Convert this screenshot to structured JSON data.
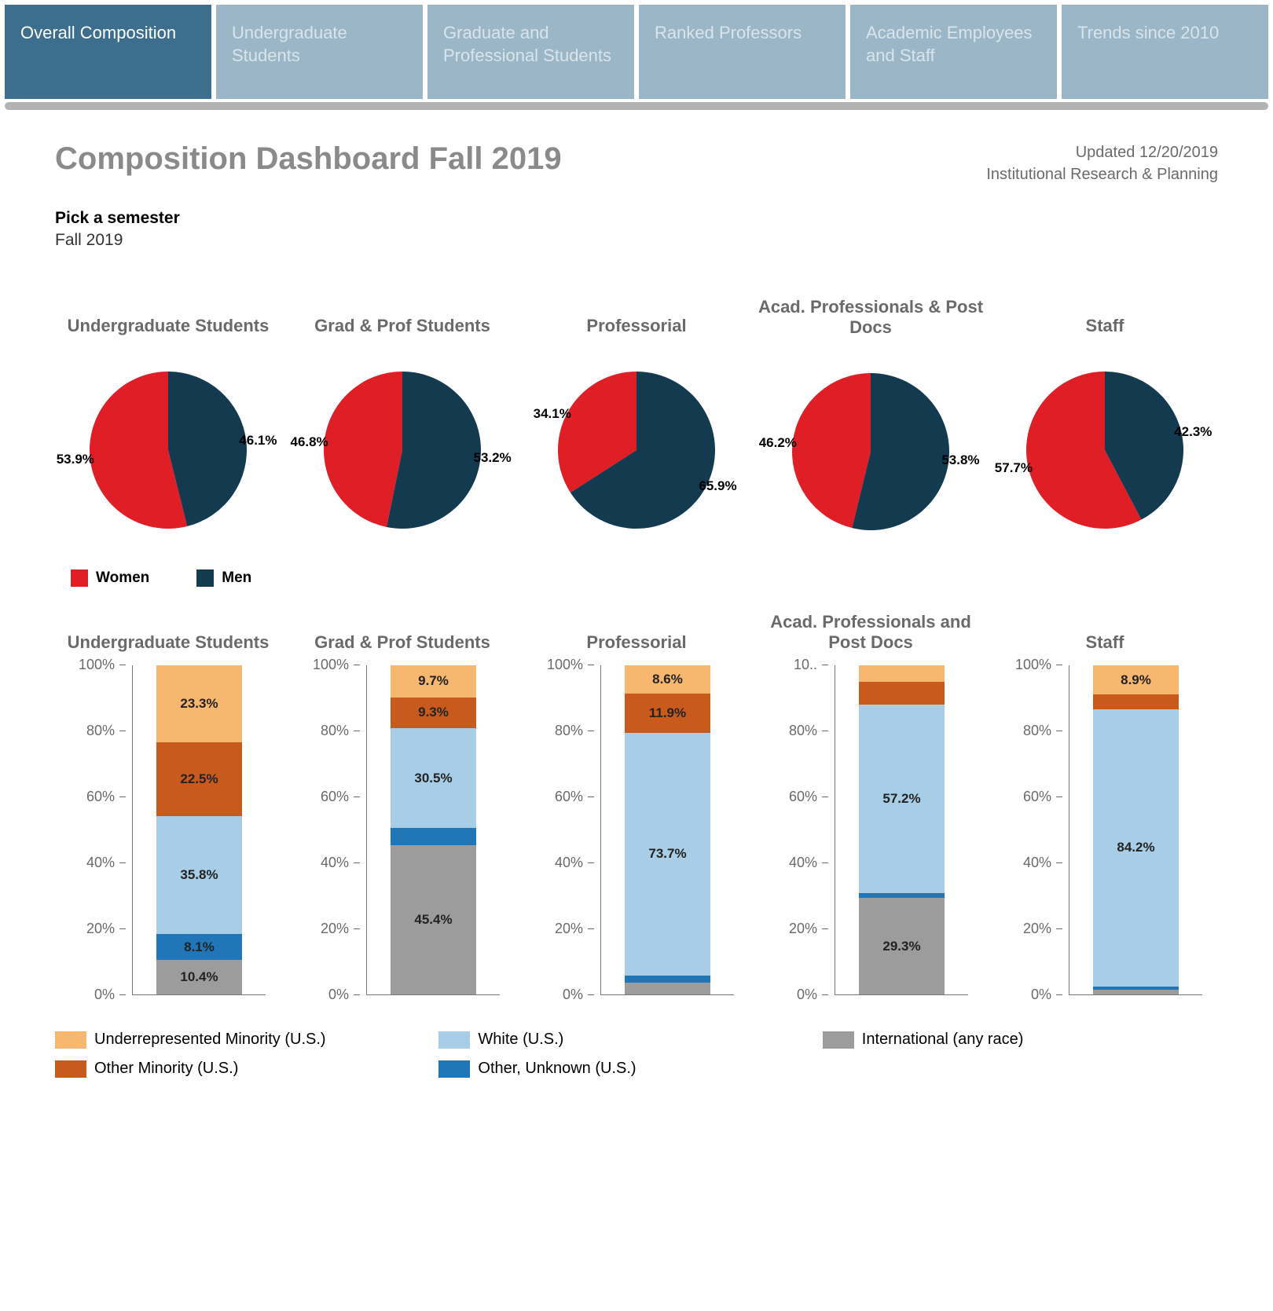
{
  "colors": {
    "tab_active": "#3d6e8e",
    "tab_inactive": "#9bb7c7",
    "tab_active_text": "#ffffff",
    "tab_inactive_text": "#d9e4eb",
    "title_text": "#8a8a8a",
    "women": "#df1e26",
    "men": "#143a50",
    "underrep": "#f7b76e",
    "other_minority": "#c85a1e",
    "white": "#a7cee6",
    "other_unknown": "#2176b8",
    "international": "#9c9c9c"
  },
  "tabs": [
    {
      "label": "Overall Composition",
      "active": true
    },
    {
      "label": "Undergraduate Students",
      "active": false
    },
    {
      "label": "Graduate and Professional Students",
      "active": false
    },
    {
      "label": "Ranked Professors",
      "active": false
    },
    {
      "label": "Academic Employees and Staff",
      "active": false
    },
    {
      "label": "Trends since 2010",
      "active": false
    }
  ],
  "header": {
    "title": "Composition Dashboard  Fall 2019",
    "updated": "Updated 12/20/2019",
    "org": "Institutional Research & Planning"
  },
  "picker": {
    "label": "Pick a semester",
    "value": "Fall 2019"
  },
  "gender_legend": {
    "women": "Women",
    "men": "Men"
  },
  "pies": [
    {
      "title": "Undergraduate Students",
      "women": 53.9,
      "men": 46.1,
      "women_label": "53.9%",
      "men_label": "46.1%"
    },
    {
      "title": "Grad & Prof Students",
      "women": 46.8,
      "men": 53.2,
      "women_label": "46.8%",
      "men_label": "53.2%"
    },
    {
      "title": "Professorial",
      "women": 34.1,
      "men": 65.9,
      "women_label": "34.1%",
      "men_label": "65.9%"
    },
    {
      "title": "Acad. Professionals & Post Docs",
      "women": 46.2,
      "men": 53.8,
      "women_label": "46.2%",
      "men_label": "53.8%"
    },
    {
      "title": "Staff",
      "women": 57.7,
      "men": 42.3,
      "women_label": "57.7%",
      "men_label": "42.3%"
    }
  ],
  "bars_meta": {
    "ylim": [
      0,
      100
    ],
    "ytick_step": 20,
    "ticks": [
      "0%",
      "20%",
      "40%",
      "60%",
      "80%",
      "100%"
    ]
  },
  "race_keys": [
    "international",
    "other_unknown",
    "white",
    "other_minority",
    "underrep"
  ],
  "bars": [
    {
      "title": "Undergraduate Students",
      "segments": {
        "international": {
          "value": 10.4,
          "label": "10.4%"
        },
        "other_unknown": {
          "value": 8.1,
          "label": "8.1%"
        },
        "white": {
          "value": 35.8,
          "label": "35.8%"
        },
        "other_minority": {
          "value": 22.5,
          "label": "22.5%"
        },
        "underrep": {
          "value": 23.3,
          "label": "23.3%"
        }
      },
      "ylabel_override": null
    },
    {
      "title": "Grad & Prof Students",
      "segments": {
        "international": {
          "value": 45.4,
          "label": "45.4%"
        },
        "other_unknown": {
          "value": 5.1,
          "label": ""
        },
        "white": {
          "value": 30.5,
          "label": "30.5%"
        },
        "other_minority": {
          "value": 9.3,
          "label": "9.3%"
        },
        "underrep": {
          "value": 9.7,
          "label": "9.7%"
        }
      },
      "ylabel_override": null
    },
    {
      "title": "Professorial",
      "segments": {
        "international": {
          "value": 3.5,
          "label": ""
        },
        "other_unknown": {
          "value": 2.3,
          "label": ""
        },
        "white": {
          "value": 73.7,
          "label": "73.7%"
        },
        "other_minority": {
          "value": 11.9,
          "label": "11.9%"
        },
        "underrep": {
          "value": 8.6,
          "label": "8.6%"
        }
      },
      "ylabel_override": null
    },
    {
      "title": "Acad. Professionals and Post Docs",
      "segments": {
        "international": {
          "value": 29.3,
          "label": "29.3%"
        },
        "other_unknown": {
          "value": 1.5,
          "label": ""
        },
        "white": {
          "value": 57.2,
          "label": "57.2%"
        },
        "other_minority": {
          "value": 7.0,
          "label": ""
        },
        "underrep": {
          "value": 5.0,
          "label": ""
        }
      },
      "ylabel_override": "10.."
    },
    {
      "title": "Staff",
      "segments": {
        "international": {
          "value": 1.5,
          "label": ""
        },
        "other_unknown": {
          "value": 1.0,
          "label": ""
        },
        "white": {
          "value": 84.2,
          "label": "84.2%"
        },
        "other_minority": {
          "value": 4.4,
          "label": ""
        },
        "underrep": {
          "value": 8.9,
          "label": "8.9%"
        }
      },
      "ylabel_override": null
    }
  ],
  "race_legend": [
    {
      "key": "underrep",
      "label": "Underrepresented Minority (U.S.)"
    },
    {
      "key": "white",
      "label": "White (U.S.)"
    },
    {
      "key": "international",
      "label": "International (any race)"
    },
    {
      "key": "other_minority",
      "label": "Other Minority (U.S.)"
    },
    {
      "key": "other_unknown",
      "label": "Other, Unknown (U.S.)"
    }
  ]
}
